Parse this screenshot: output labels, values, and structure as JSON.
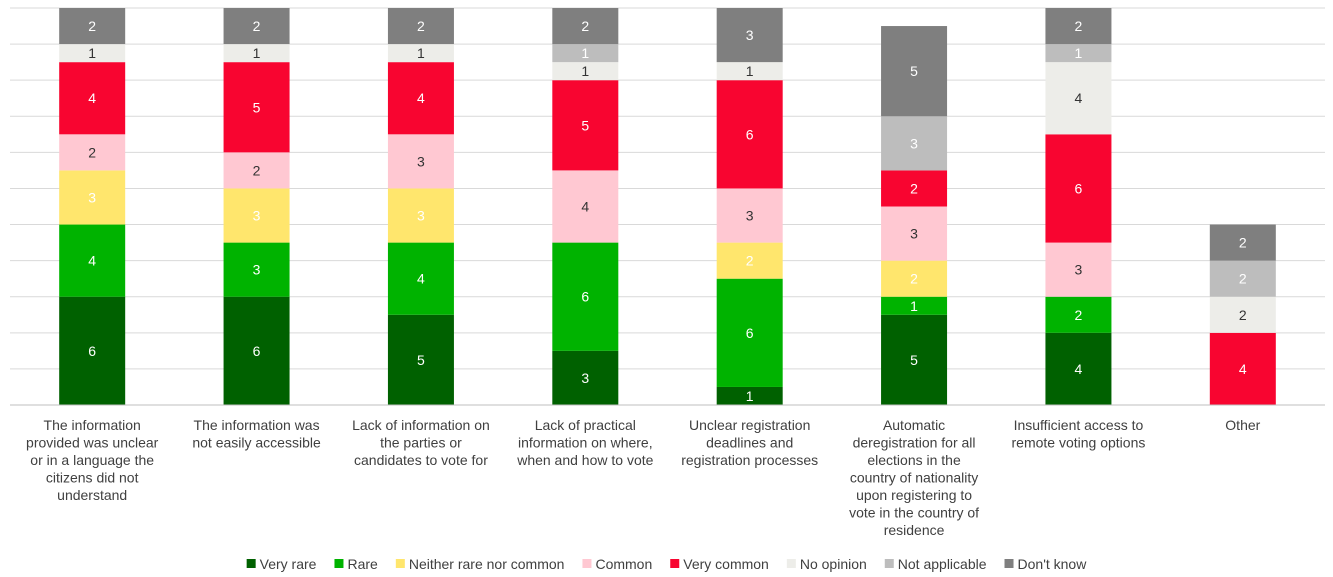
{
  "chart_data": {
    "type": "bar",
    "stacked": true,
    "ylim": [
      0,
      22
    ],
    "grid": true,
    "legend_position": "bottom",
    "categories": [
      [
        "The information",
        "provided was unclear",
        "or in a language the",
        "citizens did not",
        "understand"
      ],
      [
        "The information was",
        "not easily accessible"
      ],
      [
        "Lack of information on",
        "the parties or",
        "candidates to vote for"
      ],
      [
        "Lack of practical",
        "information on where,",
        "when and how to vote"
      ],
      [
        "Unclear registration",
        "deadlines and",
        "registration processes"
      ],
      [
        "Automatic",
        "deregistration for all",
        "elections in the",
        "country of nationality",
        "upon registering to",
        "vote in the country of",
        "residence"
      ],
      [
        "Insufficient access to",
        "remote voting options"
      ],
      [
        "Other"
      ]
    ],
    "series": [
      {
        "name": "Very rare",
        "color": "#006100",
        "label_color": "#ffffff",
        "values": [
          6,
          6,
          5,
          3,
          1,
          5,
          4,
          0
        ]
      },
      {
        "name": "Rare",
        "color": "#00B300",
        "label_color": "#ffffff",
        "values": [
          4,
          3,
          4,
          6,
          6,
          1,
          2,
          0
        ]
      },
      {
        "name": "Neither rare nor common",
        "color": "#FFE66D",
        "label_color": "#ffffff",
        "values": [
          3,
          3,
          3,
          0,
          2,
          2,
          0,
          0
        ]
      },
      {
        "name": "Common",
        "color": "#FFC8D2",
        "label_color": "#333333",
        "values": [
          2,
          2,
          3,
          4,
          3,
          3,
          3,
          0
        ]
      },
      {
        "name": "Very common",
        "color": "#F80530",
        "label_color": "#ffffff",
        "values": [
          4,
          5,
          4,
          5,
          6,
          2,
          6,
          4
        ]
      },
      {
        "name": "No opinion",
        "color": "#EDEDE9",
        "label_color": "#333333",
        "values": [
          1,
          1,
          1,
          1,
          1,
          0,
          4,
          2
        ]
      },
      {
        "name": "Not applicable",
        "color": "#BDBDBD",
        "label_color": "#ffffff",
        "values": [
          0,
          0,
          0,
          1,
          0,
          3,
          1,
          2
        ]
      },
      {
        "name": "Don't know",
        "color": "#7F7F7F",
        "label_color": "#ffffff",
        "values": [
          2,
          2,
          2,
          2,
          3,
          5,
          2,
          2
        ]
      }
    ]
  }
}
